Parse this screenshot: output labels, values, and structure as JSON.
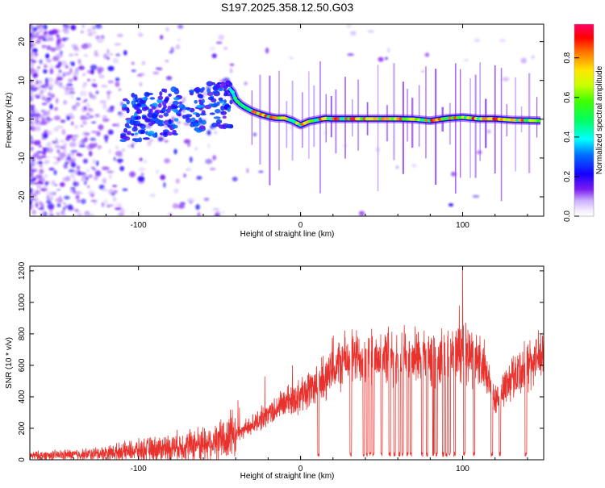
{
  "title": "S197.2025.358.12.50.G03",
  "chart_data": [
    {
      "type": "heatmap",
      "name": "spectrogram",
      "xlabel": "Height of straight line (km)",
      "ylabel": "Frequency (Hz)",
      "xlim": [
        -167,
        150
      ],
      "ylim": [
        -25,
        24.5
      ],
      "xticks": [
        -100,
        0,
        100
      ],
      "yticks": [
        -20,
        -10,
        0,
        10,
        20
      ],
      "colorbar": {
        "label": "Normalized spectral amplitude",
        "range": [
          0,
          0.97
        ],
        "ticks": [
          0.0,
          0.2,
          0.4,
          0.6,
          0.8
        ]
      },
      "ridge": {
        "x": [
          -44,
          -42,
          -40,
          -37,
          -34,
          -30,
          -25,
          -20,
          -15,
          -10,
          -5,
          0,
          5,
          10,
          15,
          20,
          30,
          40,
          50,
          60,
          70,
          80,
          90,
          100,
          110,
          120,
          130,
          140,
          148
        ],
        "y": [
          8,
          7,
          5,
          3.8,
          3,
          2.1,
          1.3,
          0.7,
          0.3,
          0.3,
          -0.4,
          -1.5,
          -0.6,
          -0.2,
          0.2,
          0.1,
          0.1,
          0.1,
          0.1,
          0.1,
          0,
          -0.4,
          0.2,
          0.5,
          0.1,
          0.1,
          -0.2,
          -0.3,
          -0.4
        ]
      }
    },
    {
      "type": "line",
      "name": "snr",
      "xlabel": "Height of straight line (km)",
      "ylabel": "SNR (10 * v/v)",
      "xlim": [
        -167,
        150
      ],
      "ylim": [
        0,
        1230
      ],
      "xticks": [
        -100,
        0,
        100
      ],
      "yticks": [
        0,
        200,
        400,
        600,
        800,
        1000,
        1200
      ],
      "color": "#e8322e",
      "trend": {
        "x": [
          -167,
          -130,
          -100,
          -70,
          -50,
          -40,
          -30,
          -20,
          -10,
          0,
          10,
          20,
          25,
          30,
          40,
          60,
          80,
          100,
          110,
          115,
          120,
          130,
          140,
          150
        ],
        "y": [
          25,
          35,
          60,
          90,
          120,
          160,
          220,
          290,
          360,
          410,
          480,
          560,
          620,
          650,
          650,
          660,
          640,
          680,
          640,
          510,
          380,
          520,
          600,
          650
        ]
      },
      "spikes": [
        {
          "x": 100,
          "value": 1230
        },
        {
          "x": 98,
          "value": 980
        },
        {
          "x": 102,
          "value": 870
        },
        {
          "x": 96,
          "value": 820
        },
        {
          "x": -22,
          "value": 530
        },
        {
          "x": -5,
          "value": 600
        },
        {
          "x": 82,
          "value": 790
        }
      ],
      "dropouts_x": [
        11,
        31,
        39,
        41,
        43,
        45,
        50,
        55,
        58,
        61,
        63,
        66,
        68,
        75,
        78,
        82,
        84,
        88,
        90,
        92,
        95,
        101,
        107,
        118,
        123,
        139
      ]
    }
  ]
}
